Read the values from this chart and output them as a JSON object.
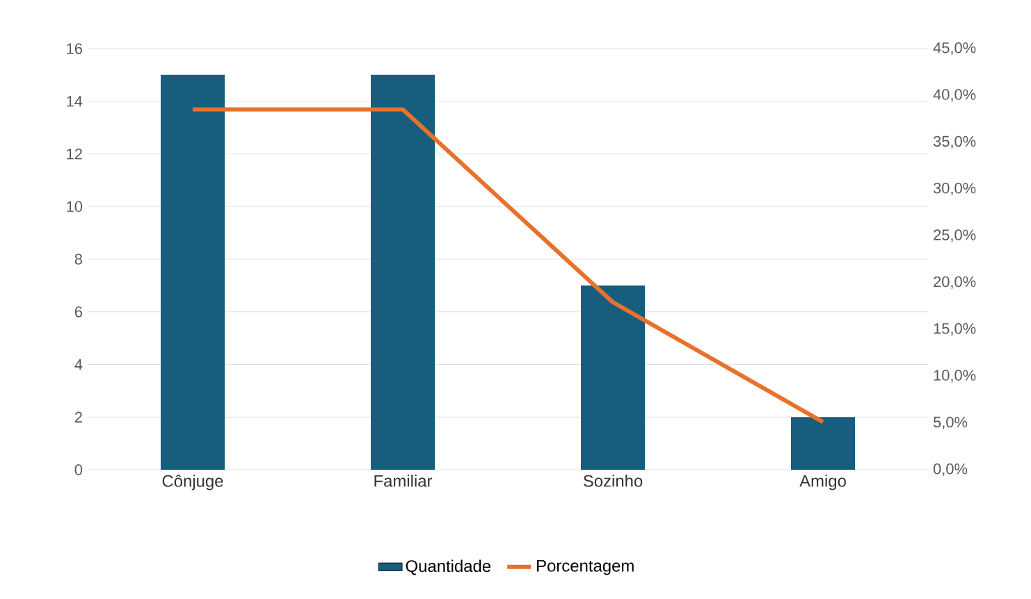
{
  "chart_data": {
    "type": "bar",
    "categories": [
      "Cônjuge",
      "Familiar",
      "Sozinho",
      "Amigo"
    ],
    "series": [
      {
        "name": "Quantidade",
        "color": "#175e7e",
        "values": [
          15,
          15,
          7,
          2
        ]
      },
      {
        "name": "Porcentagem",
        "type": "line",
        "axis": "y2",
        "color": "#e8712c",
        "values": [
          38.5,
          38.5,
          17.9,
          5.1
        ],
        "marker": "none",
        "line_style": "solid"
      }
    ],
    "ylim": [
      0,
      16
    ],
    "yticks": [
      0,
      2,
      4,
      6,
      8,
      10,
      12,
      14,
      16
    ],
    "y2lim": [
      0,
      45
    ],
    "y2ticks": [
      {
        "value": 0,
        "label": "0,0%"
      },
      {
        "value": 5,
        "label": "5,0%"
      },
      {
        "value": 10,
        "label": "10,0%"
      },
      {
        "value": 15,
        "label": "15,0%"
      },
      {
        "value": 20,
        "label": "20,0%"
      },
      {
        "value": 25,
        "label": "25,0%"
      },
      {
        "value": 30,
        "label": "30,0%"
      },
      {
        "value": 35,
        "label": "35,0%"
      },
      {
        "value": 40,
        "label": "40,0%"
      },
      {
        "value": 45,
        "label": "45,0%"
      }
    ],
    "grid": "y",
    "legend": "bottom"
  }
}
